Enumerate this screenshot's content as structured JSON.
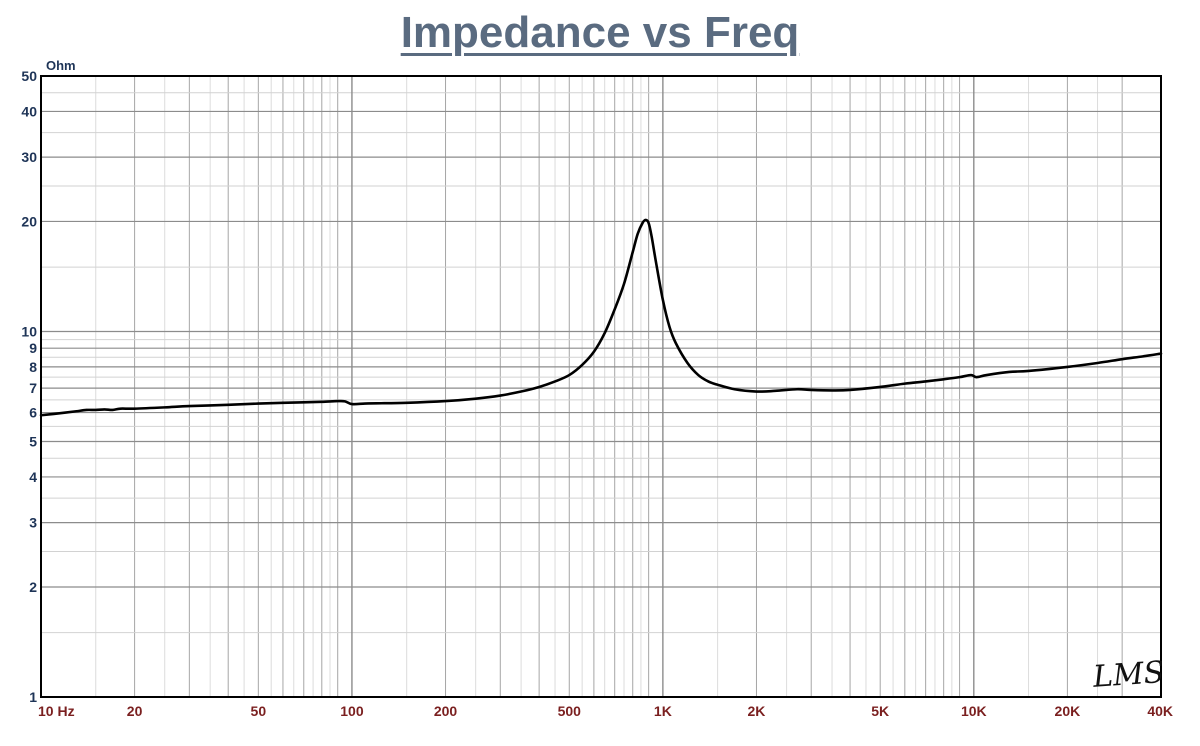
{
  "chart_data": {
    "type": "line",
    "title": "Impedance vs Freq",
    "ylabel": "Ohm",
    "xlabel": "",
    "x_scale": "log",
    "y_scale": "log",
    "xlim": [
      10,
      40000
    ],
    "ylim": [
      1,
      50
    ],
    "grid": true,
    "y_ticks": [
      {
        "value": 1,
        "label": "1"
      },
      {
        "value": 2,
        "label": "2"
      },
      {
        "value": 3,
        "label": "3"
      },
      {
        "value": 4,
        "label": "4"
      },
      {
        "value": 5,
        "label": "5"
      },
      {
        "value": 6,
        "label": "6"
      },
      {
        "value": 7,
        "label": "7"
      },
      {
        "value": 8,
        "label": "8"
      },
      {
        "value": 9,
        "label": "9"
      },
      {
        "value": 10,
        "label": "10"
      },
      {
        "value": 20,
        "label": "20"
      },
      {
        "value": 30,
        "label": "30"
      },
      {
        "value": 40,
        "label": "40"
      },
      {
        "value": 50,
        "label": "50"
      }
    ],
    "x_ticks": [
      {
        "value": 10,
        "label": "10  Hz"
      },
      {
        "value": 20,
        "label": "20"
      },
      {
        "value": 50,
        "label": "50"
      },
      {
        "value": 100,
        "label": "100"
      },
      {
        "value": 200,
        "label": "200"
      },
      {
        "value": 500,
        "label": "500"
      },
      {
        "value": 1000,
        "label": "1K"
      },
      {
        "value": 2000,
        "label": "2K"
      },
      {
        "value": 5000,
        "label": "5K"
      },
      {
        "value": 10000,
        "label": "10K"
      },
      {
        "value": 20000,
        "label": "20K"
      },
      {
        "value": 40000,
        "label": "40K"
      }
    ],
    "series": [
      {
        "color": "#000000",
        "x": [
          10,
          11,
          12,
          13,
          14,
          15,
          16,
          17,
          18,
          20,
          25,
          30,
          40,
          50,
          60,
          70,
          80,
          90,
          95,
          100,
          110,
          120,
          150,
          200,
          250,
          300,
          350,
          400,
          450,
          500,
          550,
          600,
          650,
          700,
          750,
          800,
          830,
          860,
          880,
          900,
          920,
          950,
          1000,
          1050,
          1100,
          1200,
          1300,
          1400,
          1500,
          1700,
          2000,
          2300,
          2700,
          3000,
          3500,
          4000,
          5000,
          6000,
          7000,
          8000,
          9000,
          9800,
          10200,
          11000,
          13000,
          15000,
          20000,
          25000,
          30000,
          35000,
          40000
        ],
        "y": [
          5.9,
          5.95,
          6.0,
          6.05,
          6.1,
          6.1,
          6.12,
          6.1,
          6.15,
          6.15,
          6.2,
          6.25,
          6.3,
          6.35,
          6.38,
          6.4,
          6.42,
          6.45,
          6.44,
          6.33,
          6.35,
          6.36,
          6.38,
          6.45,
          6.55,
          6.68,
          6.85,
          7.05,
          7.3,
          7.6,
          8.1,
          8.8,
          9.9,
          11.5,
          13.5,
          16.5,
          18.5,
          19.8,
          20.2,
          19.8,
          18.2,
          15.5,
          12.2,
          10.3,
          9.3,
          8.2,
          7.6,
          7.3,
          7.15,
          6.95,
          6.85,
          6.88,
          6.95,
          6.92,
          6.9,
          6.92,
          7.05,
          7.2,
          7.3,
          7.4,
          7.5,
          7.6,
          7.5,
          7.6,
          7.75,
          7.8,
          8.0,
          8.2,
          8.4,
          8.55,
          8.7
        ]
      }
    ]
  },
  "logo": {
    "text": "LMS",
    "name": "lms-logo"
  }
}
